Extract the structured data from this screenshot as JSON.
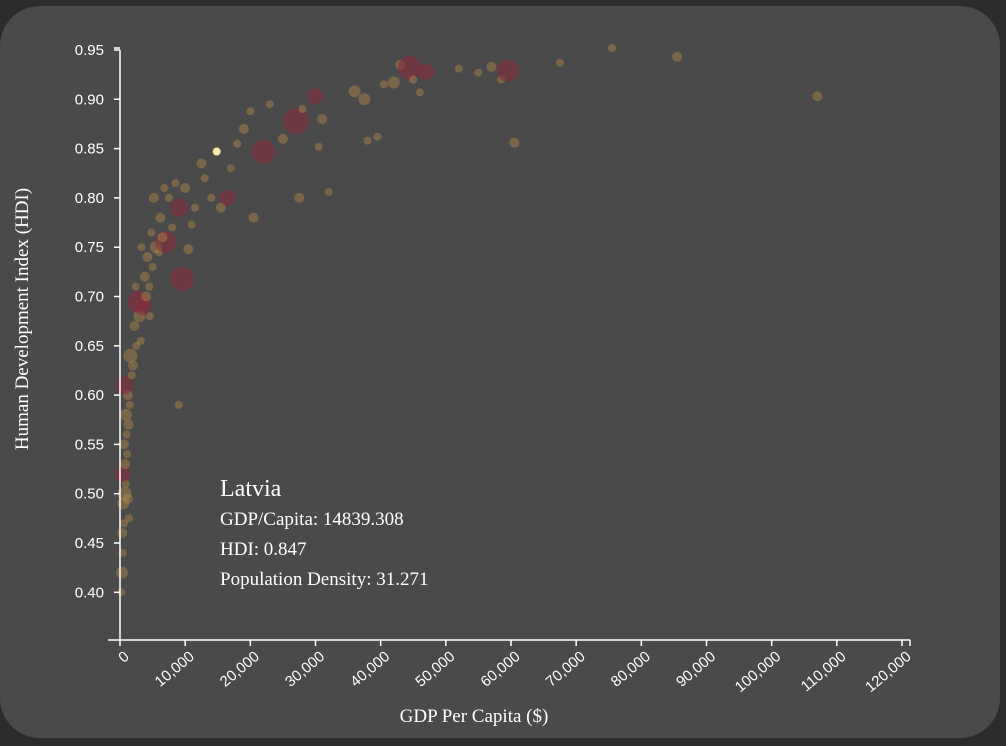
{
  "chart_data": {
    "type": "scatter",
    "title": "",
    "xlabel": "GDP Per Capita ($)",
    "ylabel": "Human Development Index (HDI)",
    "xlim": [
      0,
      120000
    ],
    "ylim": [
      0.35,
      0.95
    ],
    "x_ticks": [
      "0",
      "10,000",
      "20,000",
      "30,000",
      "40,000",
      "50,000",
      "60,000",
      "70,000",
      "80,000",
      "90,000",
      "100,000",
      "110,000",
      "120,000"
    ],
    "y_ticks": [
      "0.95",
      "0.90",
      "0.85",
      "0.80",
      "0.75",
      "0.70",
      "0.65",
      "0.60",
      "0.55",
      "0.50",
      "0.45",
      "0.40"
    ],
    "grid": false,
    "size_encodes": "Population Density",
    "colors": {
      "background": "#4a4a4a",
      "point": "#b48a4a",
      "point_dense": "#8a2a3a",
      "highlight": "#ffe9a6"
    },
    "points": [
      {
        "x": 200,
        "y": 0.4,
        "s": 4
      },
      {
        "x": 300,
        "y": 0.42,
        "s": 6
      },
      {
        "x": 400,
        "y": 0.44,
        "s": 4
      },
      {
        "x": 350,
        "y": 0.46,
        "s": 5
      },
      {
        "x": 600,
        "y": 0.47,
        "s": 4
      },
      {
        "x": 500,
        "y": 0.49,
        "s": 6
      },
      {
        "x": 700,
        "y": 0.5,
        "s": 7
      },
      {
        "x": 900,
        "y": 0.51,
        "s": 4
      },
      {
        "x": 400,
        "y": 0.52,
        "s": 8
      },
      {
        "x": 800,
        "y": 0.53,
        "s": 5
      },
      {
        "x": 1100,
        "y": 0.54,
        "s": 4
      },
      {
        "x": 600,
        "y": 0.55,
        "s": 5
      },
      {
        "x": 1000,
        "y": 0.56,
        "s": 4
      },
      {
        "x": 1300,
        "y": 0.57,
        "s": 5
      },
      {
        "x": 900,
        "y": 0.58,
        "s": 6
      },
      {
        "x": 1500,
        "y": 0.59,
        "s": 4
      },
      {
        "x": 1200,
        "y": 0.6,
        "s": 5
      },
      {
        "x": 700,
        "y": 0.61,
        "s": 9
      },
      {
        "x": 1800,
        "y": 0.62,
        "s": 4
      },
      {
        "x": 2000,
        "y": 0.63,
        "s": 5
      },
      {
        "x": 1600,
        "y": 0.64,
        "s": 7
      },
      {
        "x": 2500,
        "y": 0.65,
        "s": 4
      },
      {
        "x": 3200,
        "y": 0.655,
        "s": 4
      },
      {
        "x": 2200,
        "y": 0.67,
        "s": 5
      },
      {
        "x": 3000,
        "y": 0.68,
        "s": 6
      },
      {
        "x": 3500,
        "y": 0.69,
        "s": 9
      },
      {
        "x": 2800,
        "y": 0.695,
        "s": 11
      },
      {
        "x": 4000,
        "y": 0.7,
        "s": 5
      },
      {
        "x": 4500,
        "y": 0.71,
        "s": 4
      },
      {
        "x": 3800,
        "y": 0.72,
        "s": 5
      },
      {
        "x": 5000,
        "y": 0.73,
        "s": 4
      },
      {
        "x": 4200,
        "y": 0.74,
        "s": 5
      },
      {
        "x": 6000,
        "y": 0.745,
        "s": 4
      },
      {
        "x": 5500,
        "y": 0.75,
        "s": 6
      },
      {
        "x": 7000,
        "y": 0.755,
        "s": 11
      },
      {
        "x": 6500,
        "y": 0.76,
        "s": 5
      },
      {
        "x": 4800,
        "y": 0.765,
        "s": 4
      },
      {
        "x": 8000,
        "y": 0.77,
        "s": 4
      },
      {
        "x": 6200,
        "y": 0.78,
        "s": 5
      },
      {
        "x": 9000,
        "y": 0.79,
        "s": 9
      },
      {
        "x": 7500,
        "y": 0.8,
        "s": 4
      },
      {
        "x": 10000,
        "y": 0.81,
        "s": 5
      },
      {
        "x": 8500,
        "y": 0.815,
        "s": 4
      },
      {
        "x": 9500,
        "y": 0.718,
        "s": 12
      },
      {
        "x": 10500,
        "y": 0.748,
        "s": 5
      },
      {
        "x": 11500,
        "y": 0.79,
        "s": 4
      },
      {
        "x": 13000,
        "y": 0.82,
        "s": 4
      },
      {
        "x": 12500,
        "y": 0.835,
        "s": 5
      },
      {
        "x": 14000,
        "y": 0.8,
        "s": 4
      },
      {
        "x": 15500,
        "y": 0.79,
        "s": 5
      },
      {
        "x": 16500,
        "y": 0.8,
        "s": 8
      },
      {
        "x": 17000,
        "y": 0.83,
        "s": 4
      },
      {
        "x": 18000,
        "y": 0.855,
        "s": 4
      },
      {
        "x": 19000,
        "y": 0.87,
        "s": 5
      },
      {
        "x": 20000,
        "y": 0.888,
        "s": 4
      },
      {
        "x": 20500,
        "y": 0.78,
        "s": 5
      },
      {
        "x": 22000,
        "y": 0.847,
        "s": 12
      },
      {
        "x": 23000,
        "y": 0.895,
        "s": 4
      },
      {
        "x": 25000,
        "y": 0.86,
        "s": 5
      },
      {
        "x": 27000,
        "y": 0.878,
        "s": 13
      },
      {
        "x": 28000,
        "y": 0.89,
        "s": 4
      },
      {
        "x": 27500,
        "y": 0.8,
        "s": 5
      },
      {
        "x": 30000,
        "y": 0.903,
        "s": 8
      },
      {
        "x": 31000,
        "y": 0.88,
        "s": 5
      },
      {
        "x": 32000,
        "y": 0.806,
        "s": 4
      },
      {
        "x": 30500,
        "y": 0.852,
        "s": 4
      },
      {
        "x": 36000,
        "y": 0.908,
        "s": 6
      },
      {
        "x": 37500,
        "y": 0.9,
        "s": 6
      },
      {
        "x": 38000,
        "y": 0.858,
        "s": 4
      },
      {
        "x": 39500,
        "y": 0.862,
        "s": 4
      },
      {
        "x": 40500,
        "y": 0.915,
        "s": 4
      },
      {
        "x": 42000,
        "y": 0.917,
        "s": 6
      },
      {
        "x": 43000,
        "y": 0.935,
        "s": 5
      },
      {
        "x": 44500,
        "y": 0.932,
        "s": 12
      },
      {
        "x": 45000,
        "y": 0.92,
        "s": 4
      },
      {
        "x": 46000,
        "y": 0.907,
        "s": 4
      },
      {
        "x": 47000,
        "y": 0.928,
        "s": 8
      },
      {
        "x": 52000,
        "y": 0.931,
        "s": 4
      },
      {
        "x": 55000,
        "y": 0.927,
        "s": 4
      },
      {
        "x": 57000,
        "y": 0.933,
        "s": 5
      },
      {
        "x": 58500,
        "y": 0.92,
        "s": 4
      },
      {
        "x": 59500,
        "y": 0.929,
        "s": 11
      },
      {
        "x": 60500,
        "y": 0.856,
        "s": 5
      },
      {
        "x": 67500,
        "y": 0.937,
        "s": 4
      },
      {
        "x": 75500,
        "y": 0.952,
        "s": 4
      },
      {
        "x": 85500,
        "y": 0.943,
        "s": 5
      },
      {
        "x": 107000,
        "y": 0.903,
        "s": 5
      },
      {
        "x": 9000,
        "y": 0.59,
        "s": 4
      },
      {
        "x": 1200,
        "y": 0.495,
        "s": 5
      },
      {
        "x": 1400,
        "y": 0.475,
        "s": 4
      },
      {
        "x": 2400,
        "y": 0.71,
        "s": 4
      },
      {
        "x": 5200,
        "y": 0.8,
        "s": 5
      },
      {
        "x": 6800,
        "y": 0.81,
        "s": 4
      },
      {
        "x": 11000,
        "y": 0.773,
        "s": 4
      },
      {
        "x": 3300,
        "y": 0.75,
        "s": 4
      },
      {
        "x": 4600,
        "y": 0.68,
        "s": 4
      }
    ],
    "highlight": {
      "x": 14839.308,
      "y": 0.847,
      "density": 31.271
    }
  },
  "tooltip": {
    "country": "Latvia",
    "gdp_line": "GDP/Capita: 14839.308",
    "hdi_line": "HDI: 0.847",
    "density_line": "Population Density: 31.271"
  }
}
